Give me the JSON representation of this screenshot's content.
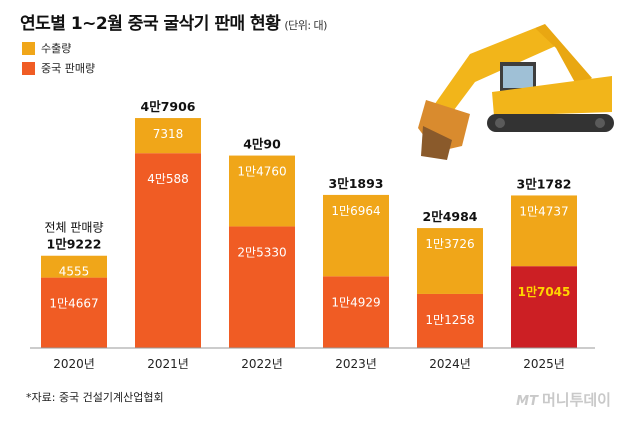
{
  "title": "연도별 1~2월 중국 굴삭기 판매 현황",
  "unit_note": "(단위: 대)",
  "legend": [
    {
      "label": "수출량",
      "color": "#f0a619"
    },
    {
      "label": "중국 판매량",
      "color": "#f05c24"
    }
  ],
  "first_bar_note": "전체 판매량",
  "chart_data": {
    "type": "bar",
    "stacked": true,
    "categories": [
      "2020년",
      "2021년",
      "2022년",
      "2023년",
      "2024년",
      "2025년"
    ],
    "series": [
      {
        "name": "중국 판매량",
        "values": [
          14667,
          40588,
          25330,
          14929,
          11258,
          17045
        ],
        "labels": [
          "1만4667",
          "4만588",
          "2만5330",
          "1만4929",
          "1만1258",
          "1만7045"
        ],
        "color": "#f05c24",
        "highlight_index": 5,
        "highlight_color": "#cc1f24",
        "highlight_label_color": "#ffd400"
      },
      {
        "name": "수출량",
        "values": [
          4555,
          7318,
          14760,
          16964,
          13726,
          14737
        ],
        "labels": [
          "4555",
          "7318",
          "1만4760",
          "1만6964",
          "1만3726",
          "1만4737"
        ],
        "color": "#f0a619"
      }
    ],
    "totals": [
      19222,
      47906,
      40090,
      31893,
      24984,
      31782
    ],
    "total_labels": [
      "1만9222",
      "4만7906",
      "4만90",
      "3만1893",
      "2만4984",
      "3만1782"
    ],
    "ylim": [
      0,
      50000
    ],
    "grid": false,
    "legend_position": "top-left"
  },
  "source": "*자료: 중국 건설기계산업협회",
  "logo": {
    "mark": "MT",
    "text": "머니투데이"
  }
}
